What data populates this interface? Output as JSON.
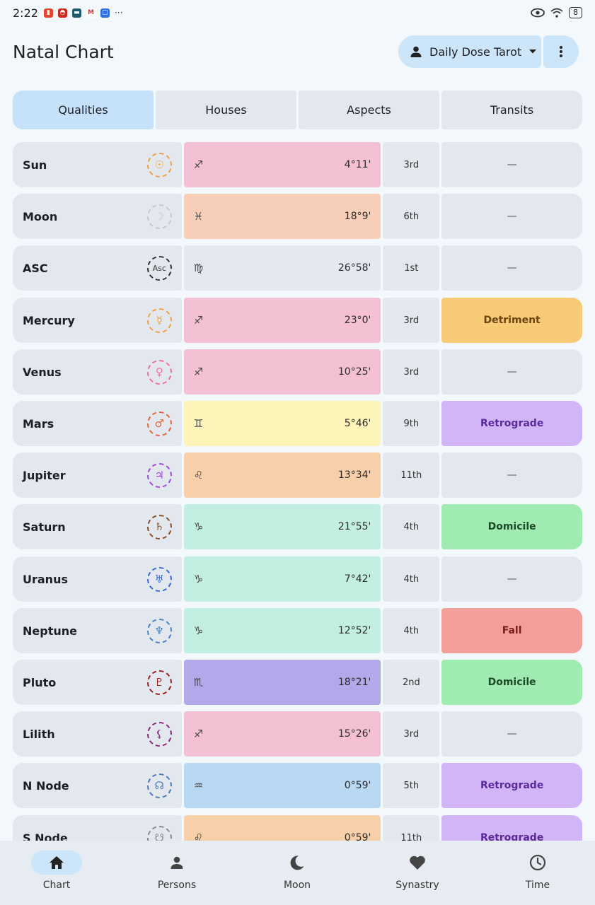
{
  "status_bar": {
    "time": "2:22",
    "battery": "8"
  },
  "header": {
    "title": "Natal Chart",
    "person_select": "Daily Dose Tarot"
  },
  "tabs": [
    {
      "label": "Qualities",
      "active": true
    },
    {
      "label": "Houses",
      "active": false
    },
    {
      "label": "Aspects",
      "active": false
    },
    {
      "label": "Transits",
      "active": false
    }
  ],
  "planets": [
    {
      "name": "Sun",
      "symbol": "☉",
      "symbol_color": "#f0a040",
      "sign": "♐",
      "degree": "4°11'",
      "sign_color": "#f4c0d4",
      "house": "3rd",
      "status": "—",
      "status_bg": "#e3e8ee",
      "status_color": "#555555"
    },
    {
      "name": "Moon",
      "symbol": "☽",
      "symbol_color": "#c4c8cf",
      "sign": "♓",
      "degree": "18°9'",
      "sign_color": "#f7cfb8",
      "house": "6th",
      "status": "—",
      "status_bg": "#e3e8ee",
      "status_color": "#555555"
    },
    {
      "name": "ASC",
      "symbol": "Asc",
      "symbol_color": "#333333",
      "sign": "♍",
      "degree": "26°58'",
      "sign_color": "#e3e8f1",
      "house": "1st",
      "status": "—",
      "status_bg": "#e3e8ee",
      "status_color": "#555555"
    },
    {
      "name": "Mercury",
      "symbol": "☿",
      "symbol_color": "#f0a040",
      "sign": "♐",
      "degree": "23°0'",
      "sign_color": "#f4c0d4",
      "house": "3rd",
      "status": "Detriment",
      "status_bg": "#f6ca77",
      "status_color": "#6b4410"
    },
    {
      "name": "Venus",
      "symbol": "♀",
      "symbol_color": "#ee6fa8",
      "sign": "♐",
      "degree": "10°25'",
      "sign_color": "#f4c0d4",
      "house": "3rd",
      "status": "—",
      "status_bg": "#e3e8ee",
      "status_color": "#555555"
    },
    {
      "name": "Mars",
      "symbol": "♂",
      "symbol_color": "#e8643a",
      "sign": "♊",
      "degree": "5°46'",
      "sign_color": "#fcf4b8",
      "house": "9th",
      "status": "Retrograde",
      "status_bg": "#d2b5f7",
      "status_color": "#5a2a9a"
    },
    {
      "name": "Jupiter",
      "symbol": "♃",
      "symbol_color": "#a04ad8",
      "sign": "♌",
      "degree": "13°34'",
      "sign_color": "#f7cfa8",
      "house": "11th",
      "status": "—",
      "status_bg": "#e3e8ee",
      "status_color": "#555555"
    },
    {
      "name": "Saturn",
      "symbol": "♄",
      "symbol_color": "#8a4e2a",
      "sign": "♑",
      "degree": "21°55'",
      "sign_color": "#c2efe2",
      "house": "4th",
      "status": "Domicile",
      "status_bg": "#a0ebb1",
      "status_color": "#1f4a2a"
    },
    {
      "name": "Uranus",
      "symbol": "♅",
      "symbol_color": "#3a6ad8",
      "sign": "♑",
      "degree": "7°42'",
      "sign_color": "#c2efe2",
      "house": "4th",
      "status": "—",
      "status_bg": "#e3e8ee",
      "status_color": "#555555"
    },
    {
      "name": "Neptune",
      "symbol": "♆",
      "symbol_color": "#4a82c8",
      "sign": "♑",
      "degree": "12°52'",
      "sign_color": "#c2efe2",
      "house": "4th",
      "status": "Fall",
      "status_bg": "#f29e9a",
      "status_color": "#7a1e1e"
    },
    {
      "name": "Pluto",
      "symbol": "♇",
      "symbol_color": "#9a2020",
      "sign": "♏",
      "degree": "18°21'",
      "sign_color": "#b3a9ea",
      "house": "2nd",
      "status": "Domicile",
      "status_bg": "#a0ebb1",
      "status_color": "#1f4a2a"
    },
    {
      "name": "Lilith",
      "symbol": "⚸",
      "symbol_color": "#8a2a7a",
      "sign": "♐",
      "degree": "15°26'",
      "sign_color": "#f4c0d4",
      "house": "3rd",
      "status": "—",
      "status_bg": "#e3e8ee",
      "status_color": "#555555"
    },
    {
      "name": "N Node",
      "symbol": "☊",
      "symbol_color": "#4a7ab8",
      "sign": "♒",
      "degree": "0°59'",
      "sign_color": "#b8d8f4",
      "house": "5th",
      "status": "Retrograde",
      "status_bg": "#d2b5f7",
      "status_color": "#5a2a9a"
    },
    {
      "name": "S Node",
      "symbol": "☋",
      "symbol_color": "#8a8a8a",
      "sign": "♌",
      "degree": "0°59'",
      "sign_color": "#f7cfa8",
      "house": "11th",
      "status": "Retrograde",
      "status_bg": "#d2b5f7",
      "status_color": "#5a2a9a"
    }
  ],
  "bottom_nav": [
    {
      "label": "Chart",
      "icon": "home-icon",
      "active": true
    },
    {
      "label": "Persons",
      "icon": "person-icon",
      "active": false
    },
    {
      "label": "Moon",
      "icon": "moon-icon",
      "active": false
    },
    {
      "label": "Synastry",
      "icon": "heart-icon",
      "active": false
    },
    {
      "label": "Time",
      "icon": "clock-icon",
      "active": false
    }
  ]
}
